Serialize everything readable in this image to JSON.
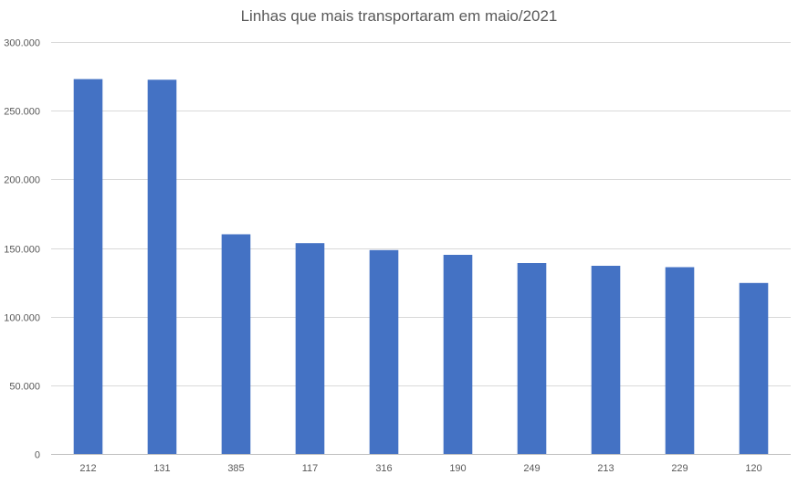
{
  "chart_data": {
    "type": "bar",
    "title": "Linhas que mais transportaram em maio/2021",
    "xlabel": "",
    "ylabel": "",
    "categories": [
      "212",
      "131",
      "385",
      "117",
      "316",
      "190",
      "249",
      "213",
      "229",
      "120"
    ],
    "values": [
      273000,
      272500,
      160000,
      153500,
      148500,
      145000,
      139000,
      137000,
      136000,
      124500
    ],
    "ylim": [
      0,
      300000
    ],
    "yticks": [
      0,
      50000,
      100000,
      150000,
      200000,
      250000,
      300000
    ],
    "ytick_labels": [
      "0",
      "50.000",
      "100.000",
      "150.000",
      "200.000",
      "250.000",
      "300.000"
    ],
    "grid": true,
    "legend": "none",
    "bar_color": "#4472c4"
  }
}
